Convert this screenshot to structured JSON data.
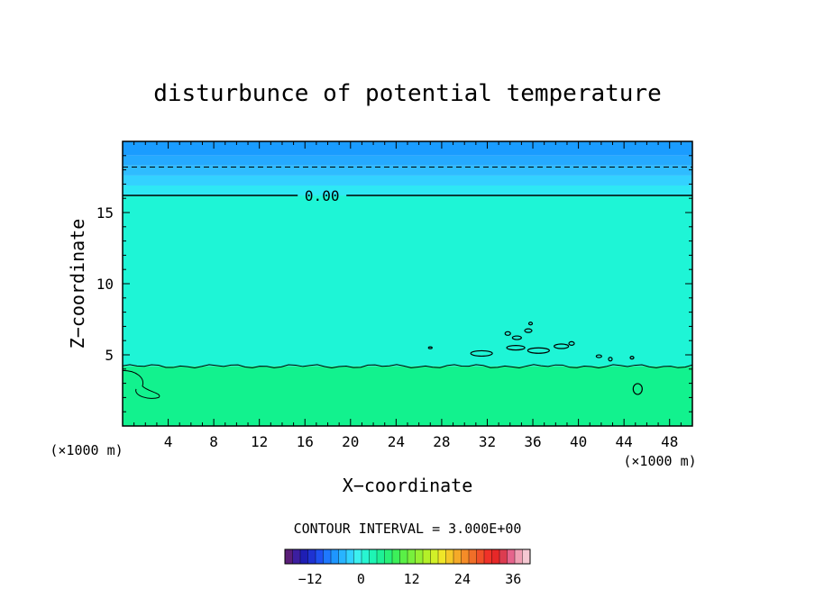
{
  "chart_data": {
    "type": "heatmap",
    "title": "disturbunce of potential temperature",
    "xlabel": "X−coordinate",
    "ylabel": "Z−coordinate",
    "x_unit_left": "(×1000 m)",
    "x_unit_right": "(×1000 m)",
    "xlim": [
      0,
      50
    ],
    "ylim": [
      0,
      20
    ],
    "x_ticks": [
      4,
      8,
      12,
      16,
      20,
      24,
      28,
      32,
      36,
      40,
      44,
      48
    ],
    "y_ticks": [
      5,
      10,
      15
    ],
    "contour_interval_text": "CONTOUR INTERVAL = 3.000E+00",
    "contour_label": "0.00",
    "contour_zero_level_z": 16.2,
    "contour_dashed_level_z": 18.2,
    "contour_near_surface_z": 4.2,
    "layers": [
      {
        "z_from": 19.0,
        "z_to": 20.0,
        "color": "#1a9cff"
      },
      {
        "z_from": 18.3,
        "z_to": 19.0,
        "color": "#25aaff"
      },
      {
        "z_from": 17.6,
        "z_to": 18.3,
        "color": "#2fbcff"
      },
      {
        "z_from": 16.9,
        "z_to": 17.6,
        "color": "#33d2ff"
      },
      {
        "z_from": 16.2,
        "z_to": 16.9,
        "color": "#2ee8f4"
      },
      {
        "z_from": 4.2,
        "z_to": 16.2,
        "color": "#1ef5d6"
      },
      {
        "z_from": 0.0,
        "z_to": 4.2,
        "color": "#12f28e"
      }
    ],
    "colorbar": {
      "min": -18,
      "max": 40,
      "tick_values": [
        -12,
        0,
        12,
        24,
        36
      ],
      "tick_labels": [
        "−12",
        "0",
        "12",
        "24",
        "36"
      ],
      "colors": [
        "#5a1e78",
        "#3c1ea0",
        "#1e1eb4",
        "#1e32d2",
        "#1e50f0",
        "#1e78ff",
        "#1e96ff",
        "#28b4ff",
        "#32d2ff",
        "#3cf0f0",
        "#28f5d2",
        "#1ef5b4",
        "#1ef096",
        "#28f078",
        "#3cf05a",
        "#5af046",
        "#78f03c",
        "#96f032",
        "#b4f028",
        "#d2f028",
        "#f0e628",
        "#f5c828",
        "#f5aa28",
        "#f58c28",
        "#f06e28",
        "#f05028",
        "#f03228",
        "#e62828",
        "#dc3c50",
        "#e6648c",
        "#f0a0b4",
        "#f5c8d2"
      ]
    }
  }
}
